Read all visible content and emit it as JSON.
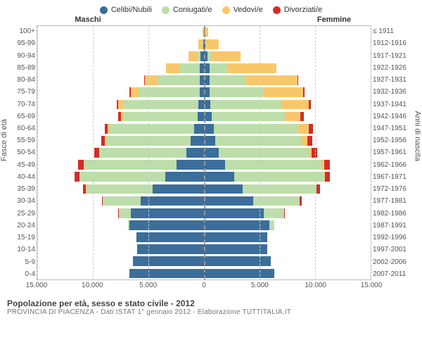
{
  "legend": [
    {
      "label": "Celibi/Nubili",
      "color": "#3b6e9a"
    },
    {
      "label": "Coniugati/e",
      "color": "#bdddaa"
    },
    {
      "label": "Vedovi/e",
      "color": "#f9c76b"
    },
    {
      "label": "Divorziati/e",
      "color": "#cf2e2a"
    }
  ],
  "header_male": "Maschi",
  "header_female": "Femmine",
  "ylabel_left": "Fasce di età",
  "ylabel_right": "Anni di nascita",
  "xmax": 15000,
  "xticks": [
    -15000,
    -10000,
    -5000,
    0,
    5000,
    10000,
    15000
  ],
  "xtick_labels": [
    "15.000",
    "10.000",
    "5.000",
    "0",
    "5.000",
    "10.000",
    "15.000"
  ],
  "colors": {
    "single": "#3b6e9a",
    "married": "#bdddaa",
    "widowed": "#f9c76b",
    "divorced": "#cf2e2a",
    "grid": "#cccccc",
    "center": "#999999",
    "border": "#bbbbbb",
    "bg": "#ffffff"
  },
  "caption_title": "Popolazione per età, sesso e stato civile - 2012",
  "caption_sub": "PROVINCIA DI PIACENZA - Dati ISTAT 1° gennaio 2012 - Elaborazione TUTTITALIA.IT",
  "rows": [
    {
      "age": "100+",
      "birth": "≤ 1911",
      "m": [
        0,
        0,
        100,
        0
      ],
      "f": [
        50,
        0,
        350,
        0
      ]
    },
    {
      "age": "95-99",
      "birth": "1912-1916",
      "m": [
        50,
        50,
        400,
        0
      ],
      "f": [
        100,
        100,
        1100,
        0
      ]
    },
    {
      "age": "90-94",
      "birth": "1917-1921",
      "m": [
        300,
        300,
        800,
        0
      ],
      "f": [
        300,
        400,
        2600,
        0
      ]
    },
    {
      "age": "85-89",
      "birth": "1922-1926",
      "m": [
        400,
        1800,
        1200,
        0
      ],
      "f": [
        500,
        1600,
        4400,
        0
      ]
    },
    {
      "age": "80-84",
      "birth": "1927-1931",
      "m": [
        400,
        3800,
        1100,
        50
      ],
      "f": [
        500,
        3300,
        4600,
        100
      ]
    },
    {
      "age": "75-79",
      "birth": "1932-1936",
      "m": [
        400,
        5500,
        700,
        100
      ],
      "f": [
        500,
        4800,
        3600,
        150
      ]
    },
    {
      "age": "70-74",
      "birth": "1937-1941",
      "m": [
        500,
        6800,
        400,
        150
      ],
      "f": [
        600,
        6400,
        2400,
        200
      ]
    },
    {
      "age": "65-69",
      "birth": "1942-1946",
      "m": [
        600,
        6700,
        200,
        200
      ],
      "f": [
        700,
        6600,
        1400,
        300
      ]
    },
    {
      "age": "60-64",
      "birth": "1947-1951",
      "m": [
        900,
        7600,
        150,
        300
      ],
      "f": [
        900,
        7600,
        900,
        400
      ]
    },
    {
      "age": "55-59",
      "birth": "1952-1956",
      "m": [
        1200,
        7600,
        100,
        350
      ],
      "f": [
        1000,
        7800,
        500,
        450
      ]
    },
    {
      "age": "50-54",
      "birth": "1957-1961",
      "m": [
        1600,
        7800,
        50,
        400
      ],
      "f": [
        1300,
        8100,
        300,
        500
      ]
    },
    {
      "age": "45-49",
      "birth": "1962-1966",
      "m": [
        2500,
        8300,
        50,
        450
      ],
      "f": [
        1900,
        8700,
        200,
        550
      ]
    },
    {
      "age": "40-44",
      "birth": "1967-1971",
      "m": [
        3500,
        7700,
        30,
        400
      ],
      "f": [
        2700,
        8100,
        100,
        450
      ]
    },
    {
      "age": "35-39",
      "birth": "1972-1976",
      "m": [
        4600,
        6000,
        20,
        250
      ],
      "f": [
        3500,
        6600,
        50,
        300
      ]
    },
    {
      "age": "30-34",
      "birth": "1977-1981",
      "m": [
        5700,
        3400,
        0,
        100
      ],
      "f": [
        4400,
        4200,
        20,
        150
      ]
    },
    {
      "age": "25-29",
      "birth": "1982-1986",
      "m": [
        6600,
        1100,
        0,
        30
      ],
      "f": [
        5400,
        1800,
        0,
        50
      ]
    },
    {
      "age": "20-24",
      "birth": "1987-1991",
      "m": [
        6700,
        150,
        0,
        0
      ],
      "f": [
        5900,
        400,
        0,
        0
      ]
    },
    {
      "age": "15-19",
      "birth": "1992-1996",
      "m": [
        6100,
        0,
        0,
        0
      ],
      "f": [
        5700,
        0,
        0,
        0
      ]
    },
    {
      "age": "10-14",
      "birth": "1997-2001",
      "m": [
        6000,
        0,
        0,
        0
      ],
      "f": [
        5700,
        0,
        0,
        0
      ]
    },
    {
      "age": "5-9",
      "birth": "2002-2006",
      "m": [
        6400,
        0,
        0,
        0
      ],
      "f": [
        6000,
        0,
        0,
        0
      ]
    },
    {
      "age": "0-4",
      "birth": "2007-2011",
      "m": [
        6700,
        0,
        0,
        0
      ],
      "f": [
        6300,
        0,
        0,
        0
      ]
    }
  ]
}
